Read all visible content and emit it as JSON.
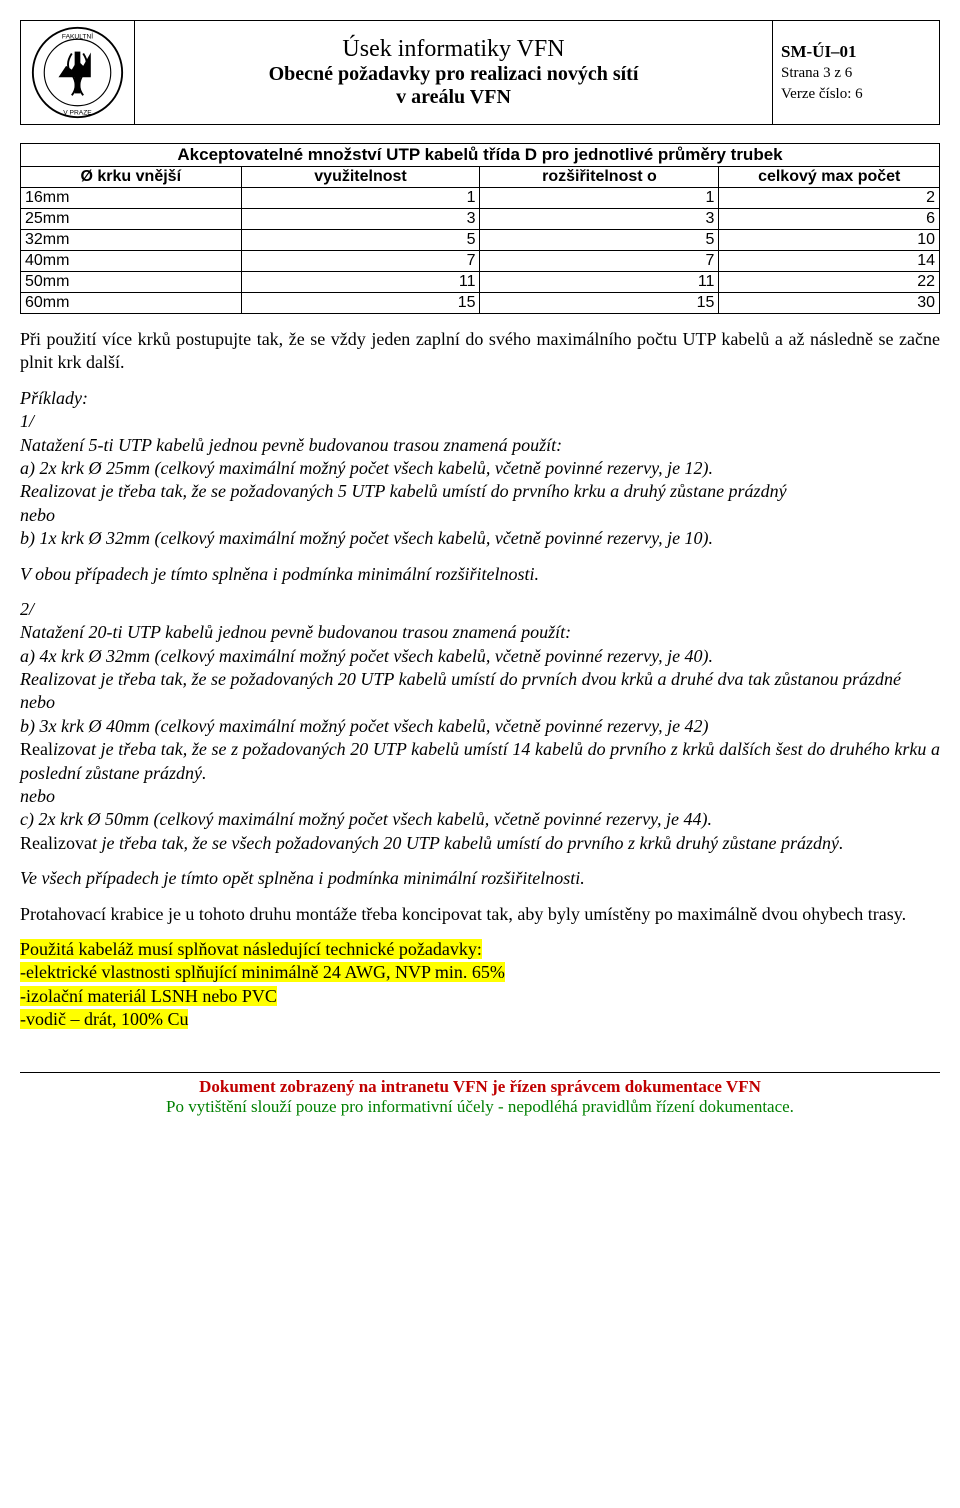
{
  "header": {
    "title_line1": "Úsek informatiky VFN",
    "title_line2": "Obecné požadavky pro realizaci nových sítí",
    "title_line3": "v areálu VFN",
    "meta_code": "SM-ÚI–01",
    "meta_page": "Strana 3 z 6",
    "meta_version": "Verze číslo: 6",
    "logo_text_top": "LÉKAŘSKÁ FAKULTA",
    "logo_text_bottom": "V PRAZE"
  },
  "table": {
    "title": "Akceptovatelné množství UTP kabelů třída D pro jednotlivé průměry trubek",
    "columns": [
      "Ø krku vnější",
      "využitelnost",
      "rozšiřitelnost o",
      "celkový max počet"
    ],
    "col_widths": [
      "24%",
      "26%",
      "26%",
      "24%"
    ],
    "rows": [
      [
        "16mm",
        "1",
        "1",
        "2"
      ],
      [
        "25mm",
        "3",
        "3",
        "6"
      ],
      [
        "32mm",
        "5",
        "5",
        "10"
      ],
      [
        "40mm",
        "7",
        "7",
        "14"
      ],
      [
        "50mm",
        "11",
        "11",
        "22"
      ],
      [
        "60mm",
        "15",
        "15",
        "30"
      ]
    ]
  },
  "body": {
    "p1": "Při použití více krků postupujte tak, že se vždy jeden zaplní do svého maximálního počtu UTP kabelů a až následně se začne plnit krk další.",
    "ex_head": "Příklady:",
    "ex1_n": "1/",
    "ex1_a": "Natažení 5-ti UTP kabelů jednou pevně budovanou trasou znamená použít:",
    "ex1_b": "a) 2x krk Ø 25mm (celkový maximální možný počet všech kabelů, včetně povinné rezervy, je 12).",
    "ex1_c": "Realizovat je třeba tak, že se požadovaných 5 UTP kabelů umístí do prvního krku a druhý zůstane prázdný",
    "nebo": "nebo",
    "ex1_d": "b) 1x krk  Ø 32mm (celkový maximální možný počet všech kabelů, včetně povinné rezervy, je 10).",
    "ex1_e": "V obou případech je tímto splněna i podmínka minimální rozšiřitelnosti.",
    "ex2_n": "2/",
    "ex2_a": "Natažení 20-ti UTP kabelů jednou pevně budovanou trasou znamená použít:",
    "ex2_b": "a) 4x krk Ø 32mm (celkový maximální možný počet všech kabelů, včetně povinné rezervy, je 40).",
    "ex2_c": "Realizovat je třeba tak, že se požadovaných 20 UTP kabelů umístí do prvních dvou krků a druhé dva tak zůstanou prázdné",
    "ex2_d": "b) 3x krk  Ø 40mm (celkový maximální možný počet všech kabelů, včetně povinné rezervy, je 42)",
    "ex2_e1": "Real",
    "ex2_e2": "izovat je třeba tak, že se z požadovaných 20 UTP kabelů umístí 14 kabelů do prvního z krků dalších šest do druhého krku a poslední zůstane prázdný.",
    "ex2_f": "c) 2x krk Ø 50mm (celkový maximální možný počet všech kabelů, včetně povinné rezervy, je 44).",
    "ex2_g1": "Realizova",
    "ex2_g2": "t je třeba tak, že se všech požadovaných 20 UTP kabelů umístí do prvního z krků druhý zůstane prázdný.",
    "ex2_h": "Ve všech případech je tímto opět splněna i podmínka minimální rozšiřitelnosti.",
    "p2": "Protahovací krabice je u tohoto druhu montáže třeba koncipovat tak, aby byly umístěny po maximálně dvou ohybech trasy.",
    "hl1": "Použitá kabeláž musí splňovat následující technické požadavky:",
    "hl2": "-elektrické vlastnosti splňující minimálně 24 AWG, NVP min. 65%",
    "hl3": "-izolační materiál LSNH nebo PVC",
    "hl4": "-vodič – drát, 100%  Cu"
  },
  "footer": {
    "line1": "Dokument zobrazený na intranetu VFN je řízen správcem dokumentace VFN",
    "line2": "Po vytištění slouží pouze pro informativní účely - nepodléhá pravidlům řízení dokumentace."
  },
  "colors": {
    "highlight": "#ffff00",
    "footer_red": "#c00000",
    "footer_green": "#008000"
  }
}
